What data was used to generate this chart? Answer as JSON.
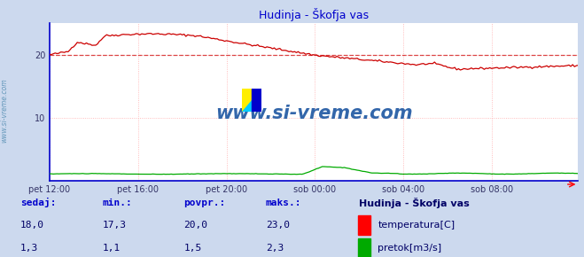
{
  "title": "Hudinja - Škofja vas",
  "outer_bg_color": "#ccd9ee",
  "plot_bg_color": "#ffffff",
  "grid_color": "#ffaaaa",
  "spine_color": "#0000cc",
  "x_labels": [
    "pet 12:00",
    "pet 16:00",
    "pet 20:00",
    "sob 00:00",
    "sob 04:00",
    "sob 08:00"
  ],
  "x_ticks": [
    0,
    48,
    96,
    144,
    192,
    240
  ],
  "total_points": 288,
  "y_min": 0,
  "y_max": 25,
  "y_ticks": [
    10,
    20
  ],
  "avg_line_value": 20.0,
  "avg_line_color": "#cc0000",
  "temp_color": "#cc0000",
  "flow_color": "#00aa00",
  "watermark_text": "www.si-vreme.com",
  "watermark_color": "#3366aa",
  "sidebar_text": "www.si-vreme.com",
  "sidebar_color": "#6699bb",
  "legend_title": "Hudinja - Škofja vas",
  "legend_title_color": "#000066",
  "table_header_color": "#0000cc",
  "table_value_color": "#000066",
  "table_headers": [
    "sedaj:",
    "min.:",
    "povpr.:",
    "maks.:"
  ],
  "table_values_temp": [
    "18,0",
    "17,3",
    "20,0",
    "23,0"
  ],
  "table_values_flow": [
    "1,3",
    "1,1",
    "1,5",
    "2,3"
  ],
  "label_temp": "temperatura[C]",
  "label_flow": "pretok[m3/s]",
  "tick_label_color": "#333366",
  "title_color": "#0000cc"
}
